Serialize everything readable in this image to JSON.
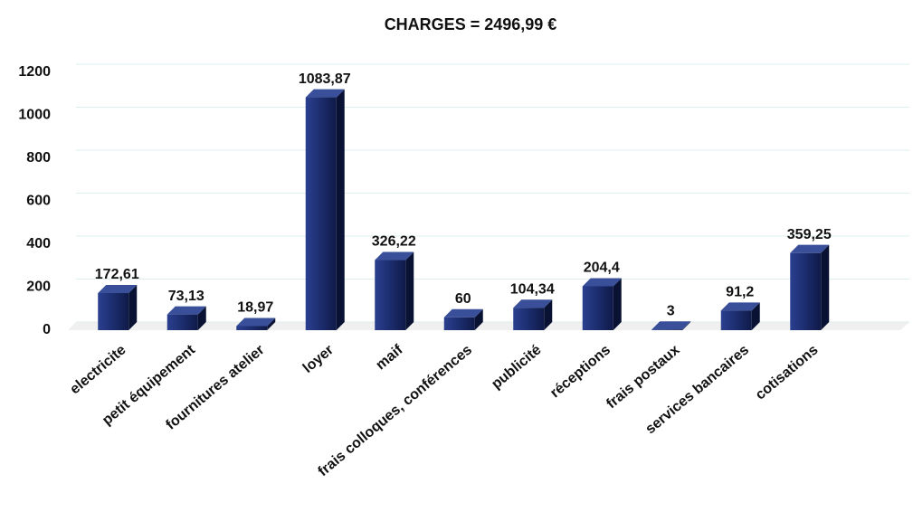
{
  "chart_data": {
    "type": "bar",
    "title": "CHARGES = 2496,99 €",
    "categories": [
      "electricite",
      "petit équipement",
      "fournitures atelier",
      "loyer",
      "maif",
      "frais colloques, conférences",
      "publicité",
      "réceptions",
      "frais postaux",
      "services bancaires",
      "cotisations"
    ],
    "values": [
      172.61,
      73.13,
      18.97,
      1083.87,
      326.22,
      60,
      104.34,
      204.4,
      3,
      91.2,
      359.25
    ],
    "value_labels": [
      "172,61",
      "73,13",
      "18,97",
      "1083,87",
      "326,22",
      "60",
      "104,34",
      "204,4",
      "3",
      "91,2",
      "359,25"
    ],
    "color": "#1c2d6e",
    "ylim": [
      0,
      1200
    ],
    "yticks": [
      0,
      200,
      400,
      600,
      800,
      1000,
      1200
    ],
    "grid": true
  }
}
